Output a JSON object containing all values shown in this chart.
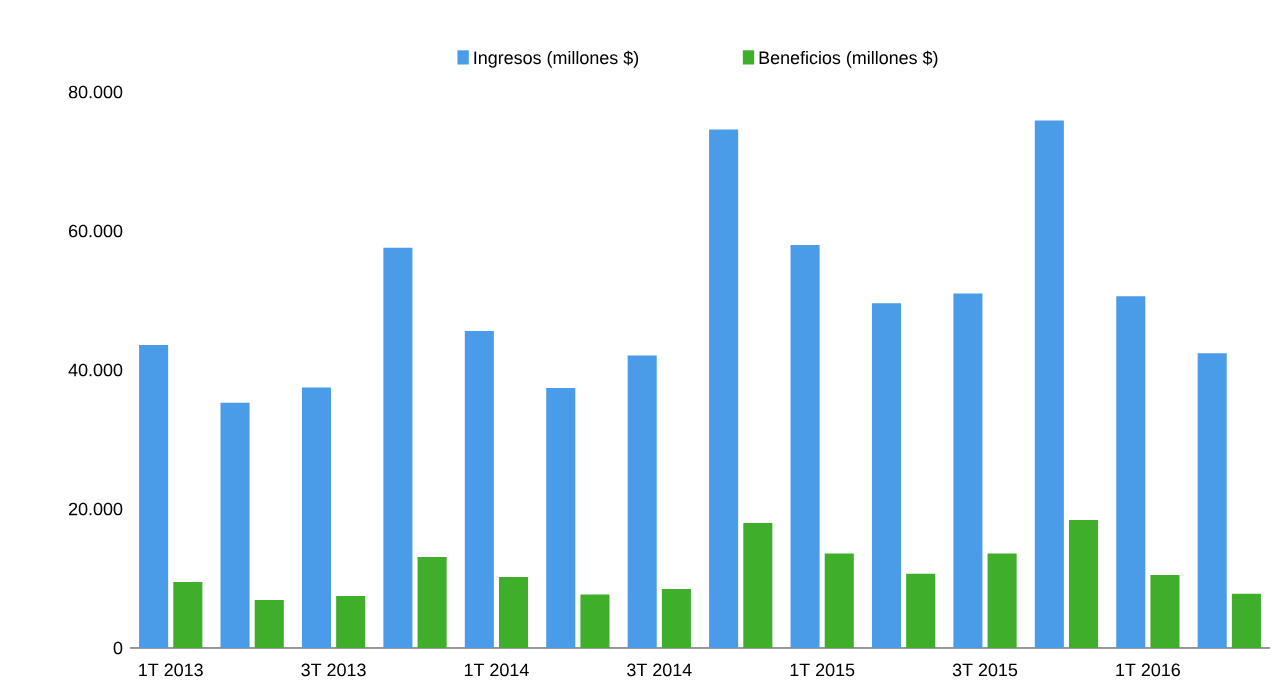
{
  "chart_data": {
    "type": "bar",
    "categories": [
      "1T 2013",
      null,
      "3T 2013",
      null,
      "1T 2014",
      null,
      "3T 2014",
      null,
      "1T 2015",
      null,
      "3T 2015",
      null,
      "1T 2016",
      null
    ],
    "series": [
      {
        "name": "Ingresos (millones $)",
        "color": "#4a9be8",
        "values": [
          43600,
          35300,
          37500,
          57600,
          45600,
          37400,
          42100,
          74600,
          58000,
          49600,
          51000,
          75900,
          50600,
          42400
        ]
      },
      {
        "name": "Beneficios (millones $)",
        "color": "#3fae2a",
        "values": [
          9500,
          6900,
          7500,
          13100,
          10200,
          7700,
          8500,
          18000,
          13600,
          10700,
          13600,
          18400,
          10500,
          7800
        ]
      }
    ],
    "ylim": [
      0,
      80000
    ],
    "yticks": [
      0,
      {
        "value": 20000,
        "label": "20.000"
      },
      {
        "value": 40000,
        "label": "40.000"
      },
      {
        "value": 60000,
        "label": "60.000"
      },
      {
        "value": 80000,
        "label": "80.000"
      }
    ],
    "legend": "top",
    "grid": false
  }
}
